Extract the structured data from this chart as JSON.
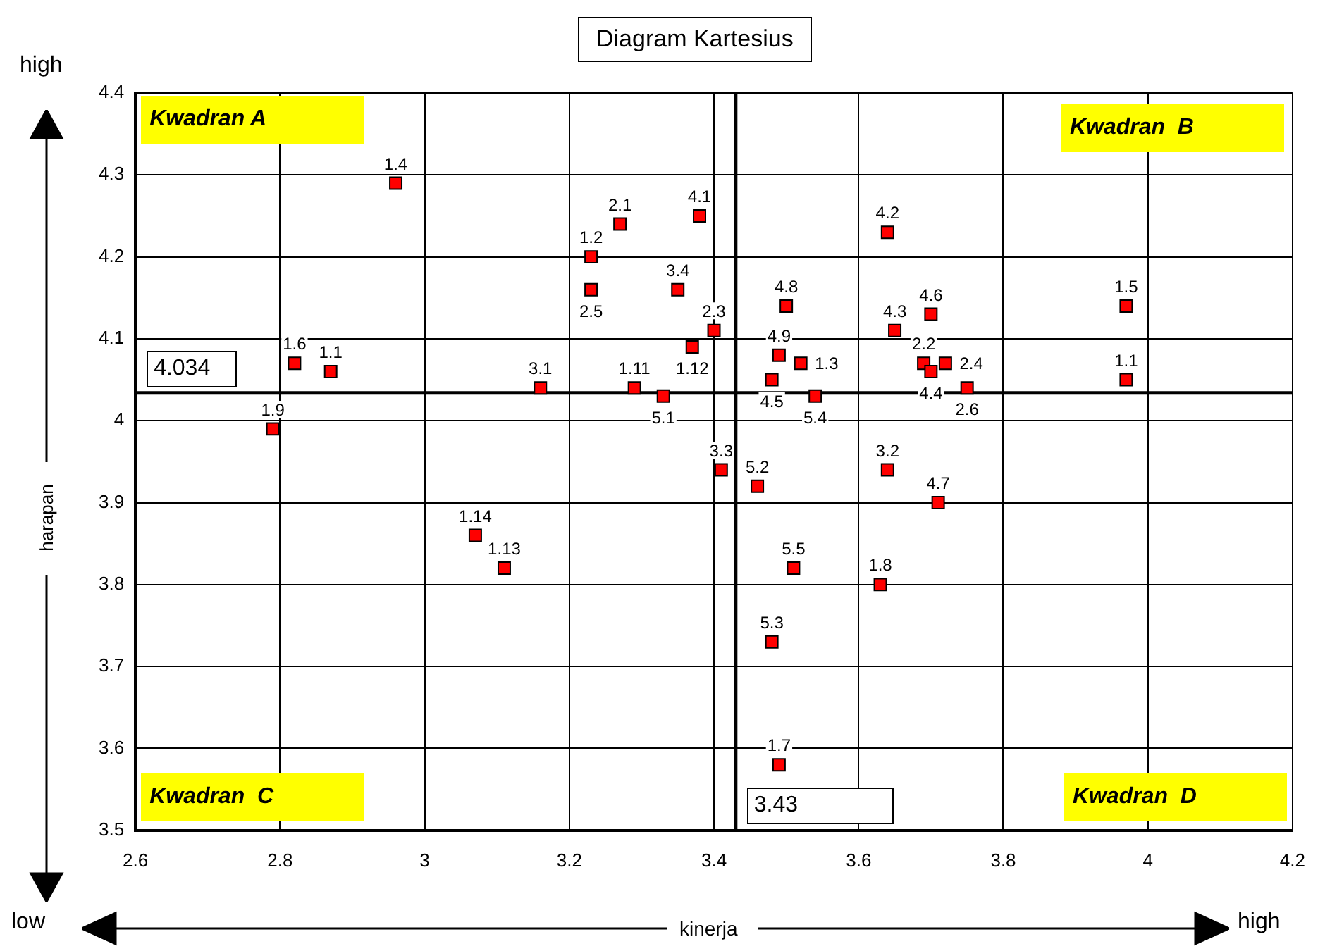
{
  "chart_data": {
    "type": "scatter",
    "title": "Diagram Kartesius",
    "xlabel": "kinerja",
    "ylabel": "harapan",
    "x": [
      2.96,
      2.82,
      2.87,
      2.79,
      3.07,
      3.11,
      3.16,
      3.27,
      3.38,
      3.23,
      3.23,
      3.35,
      3.4,
      3.37,
      3.29,
      3.33,
      3.49,
      3.52,
      3.48,
      3.54,
      3.5,
      3.41,
      3.46,
      3.64,
      3.65,
      3.7,
      3.69,
      3.7,
      3.72,
      3.75,
      3.64,
      3.71,
      3.97,
      3.97,
      3.51,
      3.63,
      3.48,
      3.49
    ],
    "series": [
      {
        "color": "#ff0000",
        "values": [
          4.29,
          4.07,
          4.06,
          3.99,
          3.86,
          3.82,
          4.04,
          4.24,
          4.25,
          4.2,
          4.16,
          4.16,
          4.11,
          4.09,
          4.04,
          4.03,
          4.08,
          4.07,
          4.05,
          4.03,
          4.14,
          3.94,
          3.92,
          4.23,
          4.11,
          4.13,
          4.07,
          4.06,
          4.07,
          4.04,
          3.94,
          3.9,
          4.14,
          4.05,
          3.82,
          3.8,
          3.73,
          3.58
        ]
      }
    ],
    "annotations": [
      {
        "text": "1.4",
        "x": 2.96,
        "y": 4.29
      },
      {
        "text": "1.6",
        "x": 2.82,
        "y": 4.07
      },
      {
        "text": "1.1",
        "x": 2.87,
        "y": 4.06
      },
      {
        "text": "1.9",
        "x": 2.79,
        "y": 3.99
      },
      {
        "text": "1.14",
        "x": 3.07,
        "y": 3.86
      },
      {
        "text": "1.13",
        "x": 3.11,
        "y": 3.82
      },
      {
        "text": "3.1",
        "x": 3.16,
        "y": 4.04
      },
      {
        "text": "2.1",
        "x": 3.27,
        "y": 4.24
      },
      {
        "text": "4.1",
        "x": 3.38,
        "y": 4.25
      },
      {
        "text": "1.2",
        "x": 3.23,
        "y": 4.2
      },
      {
        "text": "2.5",
        "x": 3.23,
        "y": 4.16
      },
      {
        "text": "3.4",
        "x": 3.35,
        "y": 4.16
      },
      {
        "text": "2.3",
        "x": 3.4,
        "y": 4.11
      },
      {
        "text": "1.12",
        "x": 3.37,
        "y": 4.09
      },
      {
        "text": "1.11",
        "x": 3.29,
        "y": 4.04
      },
      {
        "text": "5.1",
        "x": 3.33,
        "y": 4.03
      },
      {
        "text": "4.9",
        "x": 3.49,
        "y": 4.08
      },
      {
        "text": "1.3",
        "x": 3.52,
        "y": 4.07
      },
      {
        "text": "4.5",
        "x": 3.48,
        "y": 4.05
      },
      {
        "text": "5.4",
        "x": 3.54,
        "y": 4.03
      },
      {
        "text": "4.8",
        "x": 3.5,
        "y": 4.14
      },
      {
        "text": "3.3",
        "x": 3.41,
        "y": 3.94
      },
      {
        "text": "5.2",
        "x": 3.46,
        "y": 3.92
      },
      {
        "text": "4.2",
        "x": 3.64,
        "y": 4.23
      },
      {
        "text": "4.3",
        "x": 3.65,
        "y": 4.11
      },
      {
        "text": "4.6",
        "x": 3.7,
        "y": 4.13
      },
      {
        "text": "2.2",
        "x": 3.69,
        "y": 4.07
      },
      {
        "text": "4.4",
        "x": 3.7,
        "y": 4.06
      },
      {
        "text": "2.4",
        "x": 3.72,
        "y": 4.07
      },
      {
        "text": "2.6",
        "x": 3.75,
        "y": 4.04
      },
      {
        "text": "3.2",
        "x": 3.64,
        "y": 3.94
      },
      {
        "text": "4.7",
        "x": 3.71,
        "y": 3.9
      },
      {
        "text": "1.5",
        "x": 3.97,
        "y": 4.14
      },
      {
        "text": "1.1",
        "x": 3.97,
        "y": 4.05
      },
      {
        "text": "5.5",
        "x": 3.51,
        "y": 3.82
      },
      {
        "text": "1.8",
        "x": 3.63,
        "y": 3.8
      },
      {
        "text": "5.3",
        "x": 3.48,
        "y": 3.73
      },
      {
        "text": "1.7",
        "x": 3.49,
        "y": 3.58
      },
      "Kwadran A",
      "Kwadran  B",
      "Kwadran  C",
      "Kwadran  D",
      "high",
      "low",
      "high"
    ],
    "ref_lines": [
      {
        "axis": "y",
        "value": 4.034,
        "label": "4.034"
      },
      {
        "axis": "x",
        "value": 3.43,
        "label": "3.43"
      }
    ],
    "xlim": [
      2.6,
      4.2
    ],
    "xticks": [
      2.6,
      2.8,
      3,
      3.2,
      3.4,
      3.6,
      3.8,
      4,
      4.2
    ],
    "ylim": [
      3.5,
      4.4
    ],
    "yticks": [
      3.5,
      3.6,
      3.7,
      3.8,
      3.9,
      4,
      4.1,
      4.2,
      4.3,
      4.4
    ],
    "grid": true,
    "legend": false,
    "marker": "square"
  }
}
